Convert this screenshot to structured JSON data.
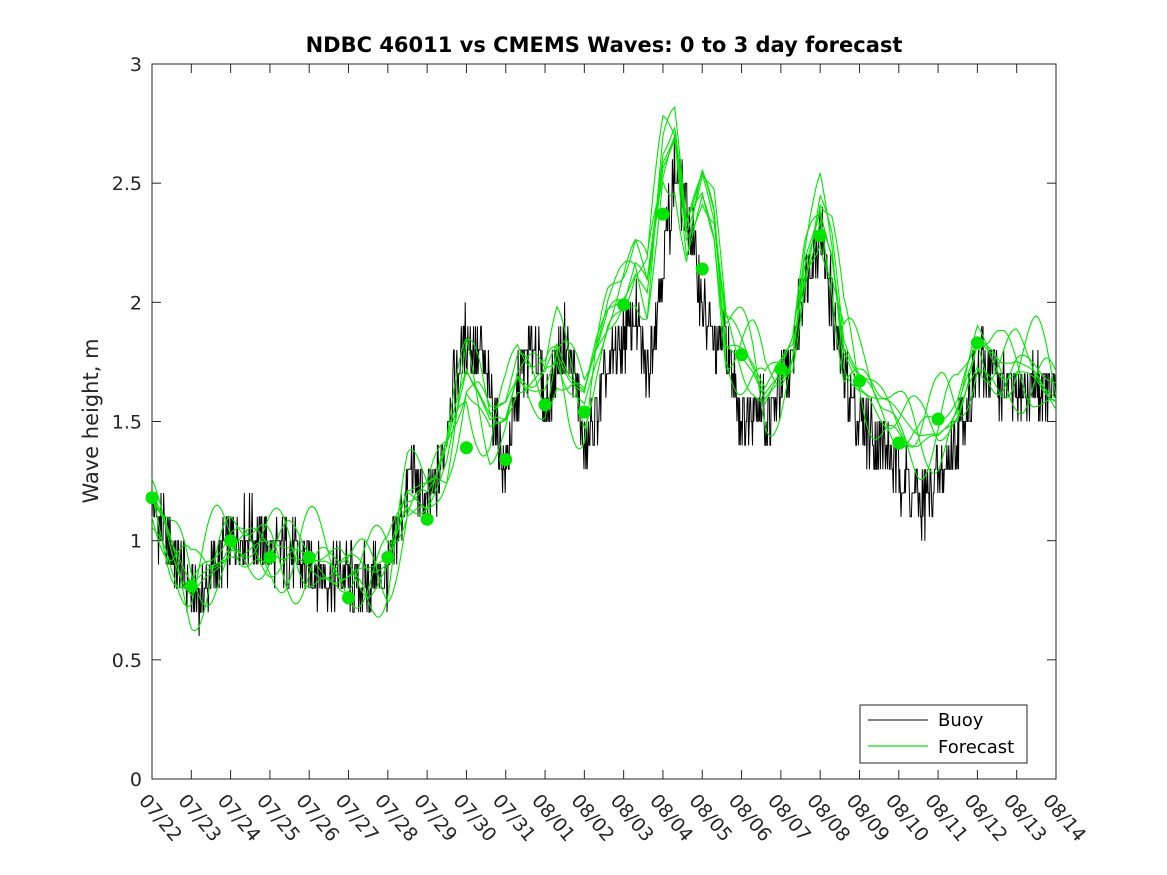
{
  "chart_data": {
    "type": "line",
    "title": "NDBC 46011 vs CMEMS Waves: 0 to 3 day forecast",
    "xlabel": "",
    "ylabel": "Wave height, m",
    "x_ticks": [
      "07/22",
      "07/23",
      "07/24",
      "07/25",
      "07/26",
      "07/27",
      "07/28",
      "07/29",
      "07/30",
      "07/31",
      "08/01",
      "08/02",
      "08/03",
      "08/04",
      "08/05",
      "08/06",
      "08/07",
      "08/08",
      "08/09",
      "08/10",
      "08/11",
      "08/12",
      "08/13",
      "08/14"
    ],
    "y_ticks": [
      "0",
      "0.5",
      "1",
      "1.5",
      "2",
      "2.5",
      "3"
    ],
    "xlim": [
      0,
      23
    ],
    "ylim": [
      0,
      3
    ],
    "grid": false,
    "legend_position": "bottom-right",
    "colors": {
      "buoy": "#000000",
      "forecast": "#00e600",
      "markers": "#00e600"
    },
    "series": [
      {
        "name": "Buoy",
        "x": [
          0,
          0.5,
          1,
          1.25,
          1.5,
          2,
          2.5,
          3,
          3.5,
          4,
          4.5,
          5,
          5.3,
          5.6,
          6,
          6.6,
          7,
          7.3,
          7.6,
          8,
          8.4,
          8.8,
          9,
          9.4,
          9.75,
          10,
          10.5,
          10.85,
          11,
          11.5,
          12,
          12.3,
          12.6,
          13,
          13.3,
          13.6,
          14,
          14.3,
          14.6,
          15,
          15.35,
          15.7,
          16,
          16.3,
          16.6,
          17,
          17.3,
          17.6,
          18,
          18.3,
          18.6,
          19,
          19.3,
          19.6,
          20,
          20.3,
          20.6,
          21,
          21.3,
          21.6,
          22,
          22.5,
          23
        ],
        "values": [
          1.15,
          0.95,
          0.8,
          0.75,
          0.85,
          1.0,
          1.05,
          0.95,
          0.95,
          0.9,
          0.85,
          0.85,
          0.8,
          0.85,
          0.85,
          1.3,
          1.15,
          1.25,
          1.6,
          1.85,
          1.75,
          1.45,
          1.3,
          1.7,
          1.85,
          1.55,
          1.85,
          1.6,
          1.35,
          1.65,
          1.85,
          1.95,
          1.7,
          2.15,
          2.55,
          2.4,
          2.0,
          1.8,
          1.85,
          1.5,
          1.6,
          1.5,
          1.65,
          1.75,
          2.1,
          2.3,
          2.0,
          1.7,
          1.5,
          1.45,
          1.4,
          1.3,
          1.2,
          1.15,
          1.25,
          1.35,
          1.5,
          1.7,
          1.75,
          1.65,
          1.6,
          1.65,
          1.6
        ]
      },
      {
        "name": "Forecast",
        "x": [
          0,
          0.5,
          1,
          1.5,
          2,
          2.5,
          3,
          3.5,
          4,
          4.5,
          5,
          5.5,
          6,
          6.5,
          7,
          7.5,
          8,
          8.3,
          8.6,
          9,
          9.3,
          9.6,
          10,
          10.3,
          10.6,
          11,
          11.3,
          11.6,
          12,
          12.3,
          12.6,
          13,
          13.3,
          13.6,
          14,
          14.3,
          14.6,
          15,
          15.3,
          15.6,
          16,
          16.3,
          16.6,
          17,
          17.3,
          17.6,
          18,
          18.5,
          19,
          19.5,
          20,
          20.5,
          21,
          21.3,
          21.6,
          22,
          22.5,
          23
        ],
        "values": [
          1.18,
          0.95,
          0.82,
          0.88,
          0.98,
          0.97,
          0.96,
          0.96,
          0.92,
          0.88,
          0.86,
          0.86,
          0.92,
          1.18,
          1.18,
          1.35,
          1.7,
          1.62,
          1.5,
          1.55,
          1.7,
          1.68,
          1.65,
          1.78,
          1.68,
          1.6,
          1.8,
          1.95,
          2.05,
          2.15,
          2.05,
          2.6,
          2.7,
          2.3,
          2.5,
          2.35,
          1.85,
          1.78,
          1.72,
          1.62,
          1.7,
          1.8,
          2.15,
          2.4,
          2.2,
          1.8,
          1.68,
          1.58,
          1.5,
          1.45,
          1.45,
          1.55,
          1.82,
          1.75,
          1.72,
          1.75,
          1.7,
          1.6
        ]
      }
    ],
    "forecast_points": {
      "x": [
        0,
        1,
        2,
        3,
        4,
        5,
        6,
        7,
        8,
        9,
        10,
        11,
        12,
        13,
        14,
        15,
        16,
        17,
        18,
        19,
        20,
        21
      ],
      "values": [
        1.18,
        0.81,
        1.0,
        0.93,
        0.93,
        0.76,
        0.93,
        1.09,
        1.39,
        1.34,
        1.57,
        1.54,
        1.99,
        2.37,
        2.14,
        1.78,
        1.72,
        2.28,
        1.67,
        1.41,
        1.51,
        1.83
      ]
    },
    "legend": {
      "buoy_label": "Buoy",
      "forecast_label": "Forecast"
    }
  }
}
